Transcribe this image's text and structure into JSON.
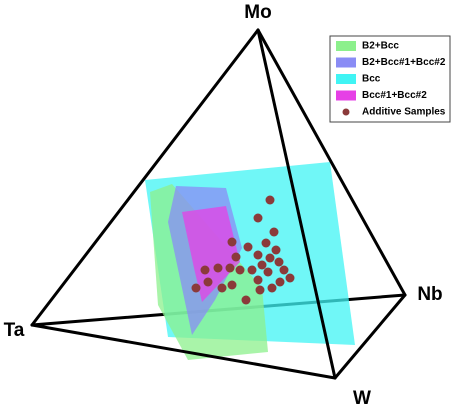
{
  "vertices": {
    "top": "Mo",
    "left": "Ta",
    "right": "Nb",
    "bottom": "W"
  },
  "legend": [
    {
      "label": "B2+Bcc",
      "color": "#8cf08c"
    },
    {
      "label": "B2+Bcc#1+Bcc#2",
      "color": "#8a8cf5"
    },
    {
      "label": "Bcc",
      "color": "#40f4f4"
    },
    {
      "label": "Bcc#1+Bcc#2",
      "color": "#e640e6"
    },
    {
      "label": "Additive Samples",
      "color": "#8b3a3a"
    }
  ]
}
